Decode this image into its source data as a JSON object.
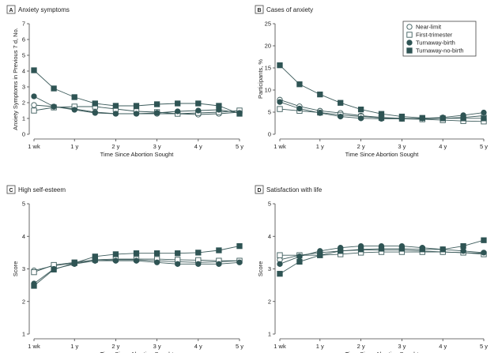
{
  "chart_data": [
    {
      "type": "line",
      "panel_letter": "A",
      "title": "Anxiety symptoms",
      "xlabel": "Time Since Abortion Sought",
      "ylabel": "Anxiety Symptoms in Previous 7 d, No.",
      "x": [
        0.019,
        0.5,
        1,
        1.5,
        2,
        2.5,
        3,
        3.5,
        4,
        4.5,
        5
      ],
      "x_ticks": [
        0.019,
        1,
        2,
        3,
        4,
        5
      ],
      "x_tick_labels": [
        "1 wk",
        "1 y",
        "2 y",
        "3 y",
        "4 y",
        "5 y"
      ],
      "ylim": [
        0,
        7
      ],
      "y_ticks": [
        0,
        1,
        2,
        3,
        4,
        5,
        6,
        7
      ],
      "series": [
        {
          "name": "Near-limit",
          "marker": "open-circle",
          "values": [
            1.85,
            1.75,
            1.6,
            1.4,
            1.3,
            1.3,
            1.3,
            1.3,
            1.25,
            1.3,
            1.4
          ]
        },
        {
          "name": "First-trimester",
          "marker": "open-square",
          "values": [
            1.5,
            1.7,
            1.75,
            1.75,
            1.6,
            1.45,
            1.4,
            1.3,
            1.35,
            1.4,
            1.5
          ]
        },
        {
          "name": "Turnaway-birth",
          "marker": "filled-circle",
          "values": [
            2.4,
            1.75,
            1.55,
            1.35,
            1.3,
            1.3,
            1.35,
            1.45,
            1.5,
            1.55,
            1.35
          ]
        },
        {
          "name": "Turnaway-no-birth",
          "marker": "filled-square",
          "values": [
            4.05,
            2.9,
            2.35,
            1.95,
            1.8,
            1.8,
            1.9,
            1.95,
            1.95,
            1.8,
            1.3
          ]
        }
      ]
    },
    {
      "type": "line",
      "panel_letter": "B",
      "title": "Cases of anxiety",
      "xlabel": "Time Since Abortion Sought",
      "ylabel": "Participants, %",
      "x": [
        0.019,
        0.5,
        1,
        1.5,
        2,
        2.5,
        3,
        3.5,
        4,
        4.5,
        5
      ],
      "x_ticks": [
        0.019,
        1,
        2,
        3,
        4,
        5
      ],
      "x_tick_labels": [
        "1 wk",
        "1 y",
        "2 y",
        "3 y",
        "4 y",
        "5 y"
      ],
      "ylim": [
        0,
        25
      ],
      "y_ticks": [
        0,
        5,
        10,
        15,
        20,
        25
      ],
      "legend_position": "top-right",
      "series": [
        {
          "name": "Near-limit",
          "marker": "open-circle",
          "values": [
            7.8,
            6.3,
            5.3,
            4.8,
            4.2,
            3.8,
            3.6,
            3.5,
            3.6,
            3.8,
            4.2
          ]
        },
        {
          "name": "First-trimester",
          "marker": "open-square",
          "values": [
            5.7,
            5.3,
            4.9,
            4.4,
            4.0,
            3.7,
            3.5,
            3.4,
            3.2,
            3.0,
            2.9
          ]
        },
        {
          "name": "Turnaway-birth",
          "marker": "filled-circle",
          "values": [
            7.3,
            5.8,
            4.8,
            4.0,
            3.6,
            3.5,
            3.5,
            3.6,
            3.8,
            4.3,
            4.9
          ]
        },
        {
          "name": "Turnaway-no-birth",
          "marker": "filled-square",
          "values": [
            15.6,
            11.3,
            9.0,
            7.1,
            5.6,
            4.6,
            4.0,
            3.7,
            3.6,
            3.6,
            3.6
          ]
        }
      ]
    },
    {
      "type": "line",
      "panel_letter": "C",
      "title": "High self-esteem",
      "xlabel": "Time Since Abortion Sought",
      "ylabel": "Score",
      "x": [
        0.019,
        0.5,
        1,
        1.5,
        2,
        2.5,
        3,
        3.5,
        4,
        4.5,
        5
      ],
      "x_ticks": [
        0.019,
        1,
        2,
        3,
        4,
        5
      ],
      "x_tick_labels": [
        "1 wk",
        "1 y",
        "2 y",
        "3 y",
        "4 y",
        "5 y"
      ],
      "ylim": [
        1,
        5
      ],
      "y_ticks": [
        1,
        2,
        3,
        4,
        5
      ],
      "series": [
        {
          "name": "Near-limit",
          "marker": "open-circle",
          "values": [
            2.95,
            3.1,
            3.18,
            3.25,
            3.28,
            3.28,
            3.25,
            3.22,
            3.2,
            3.22,
            3.25
          ]
        },
        {
          "name": "First-trimester",
          "marker": "open-square",
          "values": [
            2.9,
            3.12,
            3.2,
            3.28,
            3.3,
            3.3,
            3.3,
            3.28,
            3.27,
            3.25,
            3.25
          ]
        },
        {
          "name": "Turnaway-birth",
          "marker": "filled-circle",
          "values": [
            2.55,
            3.0,
            3.15,
            3.25,
            3.25,
            3.25,
            3.2,
            3.15,
            3.15,
            3.15,
            3.2
          ]
        },
        {
          "name": "Turnaway-no-birth",
          "marker": "filled-square",
          "values": [
            2.48,
            2.98,
            3.18,
            3.38,
            3.45,
            3.48,
            3.48,
            3.48,
            3.5,
            3.57,
            3.7
          ]
        }
      ]
    },
    {
      "type": "line",
      "panel_letter": "D",
      "title": "Satisfaction with life",
      "xlabel": "Time Since Abortion Sought",
      "ylabel": "Score",
      "x": [
        0.019,
        0.5,
        1,
        1.5,
        2,
        2.5,
        3,
        3.5,
        4,
        4.5,
        5
      ],
      "x_ticks": [
        0.019,
        1,
        2,
        3,
        4,
        5
      ],
      "x_tick_labels": [
        "1 wk",
        "1 y",
        "2 y",
        "3 y",
        "4 y",
        "5 y"
      ],
      "ylim": [
        1,
        5
      ],
      "y_ticks": [
        1,
        2,
        3,
        4,
        5
      ],
      "series": [
        {
          "name": "Near-limit",
          "marker": "open-circle",
          "values": [
            3.28,
            3.42,
            3.5,
            3.55,
            3.58,
            3.58,
            3.58,
            3.55,
            3.52,
            3.5,
            3.48
          ]
        },
        {
          "name": "First-trimester",
          "marker": "open-square",
          "values": [
            3.42,
            3.42,
            3.42,
            3.45,
            3.5,
            3.52,
            3.52,
            3.52,
            3.52,
            3.5,
            3.45
          ]
        },
        {
          "name": "Turnaway-birth",
          "marker": "filled-circle",
          "values": [
            3.15,
            3.38,
            3.55,
            3.65,
            3.7,
            3.7,
            3.7,
            3.65,
            3.6,
            3.55,
            3.5
          ]
        },
        {
          "name": "Turnaway-no-birth",
          "marker": "filled-square",
          "values": [
            2.85,
            3.22,
            3.42,
            3.55,
            3.6,
            3.62,
            3.62,
            3.6,
            3.6,
            3.7,
            3.88
          ]
        }
      ]
    }
  ],
  "colors": {
    "line": "#3d5c5c",
    "filled_marker": "#2f5454",
    "axis": "#444444"
  }
}
